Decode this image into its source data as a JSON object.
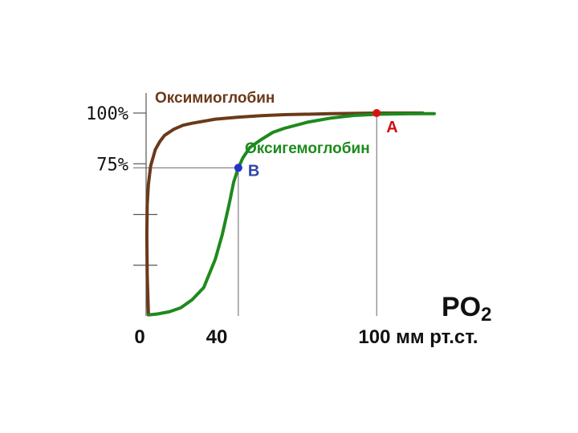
{
  "chart_data": {
    "type": "line",
    "title": "",
    "xlabel": "PO",
    "xlabel_sub": "2",
    "ylabel": "",
    "xlim": [
      0,
      125
    ],
    "ylim": [
      0,
      100
    ],
    "x_ticks": [
      {
        "value": 0,
        "label": "0"
      },
      {
        "value": 40,
        "label": "40"
      },
      {
        "value": 100,
        "label": "100 мм рт.ст."
      }
    ],
    "y_ticks": [
      {
        "value": 100,
        "label": "100%"
      },
      {
        "value": 75,
        "label": "75%"
      },
      {
        "value": 50,
        "label": ""
      },
      {
        "value": 25,
        "label": ""
      }
    ],
    "series": [
      {
        "name": "Оксимиоглобин",
        "color": "#6b3a1a",
        "x": [
          1,
          0.5,
          0.3,
          0.5,
          1,
          2,
          4,
          6,
          8,
          12,
          16,
          20,
          30,
          40,
          50,
          60,
          80,
          100,
          120
        ],
        "y": [
          1,
          20,
          40,
          55,
          65,
          74,
          82,
          86,
          89,
          92,
          94,
          95,
          97,
          98,
          98.7,
          99.2,
          99.7,
          100,
          100
        ]
      },
      {
        "name": "Оксигемоглобин",
        "color": "#1e8a1e",
        "x": [
          1,
          5,
          10,
          15,
          20,
          25,
          30,
          33,
          36,
          38,
          40,
          42,
          45,
          50,
          55,
          60,
          70,
          80,
          90,
          100,
          110,
          120,
          125
        ],
        "y": [
          0.5,
          1,
          2,
          4,
          8,
          14,
          28,
          40,
          55,
          66,
          73,
          78,
          83,
          87,
          90.5,
          92.5,
          95.5,
          97.5,
          98.8,
          99.4,
          99.6,
          99.7,
          99.7
        ]
      }
    ],
    "points": [
      {
        "label": "А",
        "x": 100,
        "y": 100,
        "color": "#dd1111",
        "label_color": "#cc1111"
      },
      {
        "label": "В",
        "x": 40,
        "y": 73,
        "color": "#2233cc",
        "label_color": "#3344aa"
      }
    ],
    "guides": [
      {
        "from": [
          0,
          73
        ],
        "to": [
          40,
          73
        ]
      },
      {
        "from": [
          40,
          0
        ],
        "to": [
          40,
          73
        ]
      },
      {
        "from": [
          100,
          0
        ],
        "to": [
          100,
          100
        ]
      }
    ],
    "grid": false,
    "legend": "none"
  }
}
